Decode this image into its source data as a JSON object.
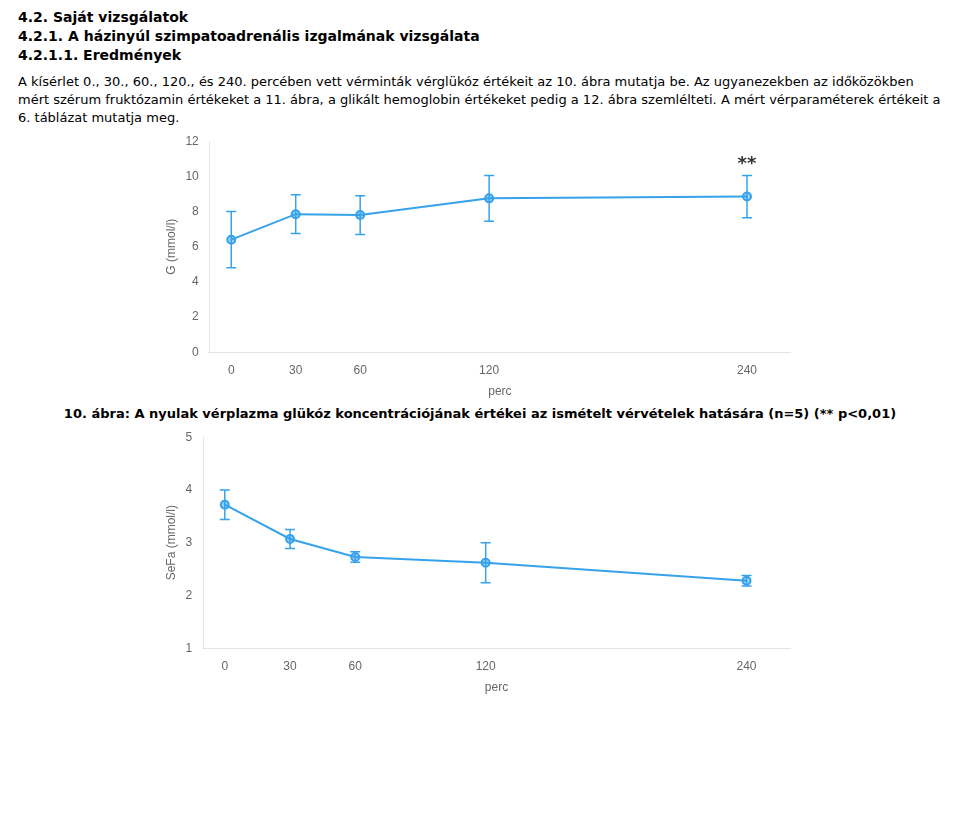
{
  "page_text": {
    "headings": [
      "4.2. Saját vizsgálatok",
      "4.2.1. A házinyúl szimpatoadrenális izgalmának vizsgálata",
      "4.2.1.1. Eredmények"
    ],
    "paragraph": "A kísérlet 0., 30., 60., 120., és 240. percében vett vérminták vérglükóz értékeit az 10. ábra mutatja be. Az ugyanezekben az időközökben mért szérum fruktózamin értékeket a 11. ábra, a glikált hemoglobin értékeket pedig a 12. ábra szemlélteti. A mért vérparaméterek értékeit a 6. táblázat mutatja meg."
  },
  "chart_data": [
    {
      "type": "line",
      "caption": "10. ábra: A nyulak vérplazma glükóz koncentrációjának értékei az ismételt vérvételek hatására (n=5) (** p<0,01)",
      "x": [
        0,
        30,
        60,
        120,
        240
      ],
      "values": [
        6.4,
        7.85,
        7.8,
        8.75,
        8.85
      ],
      "yerr": [
        1.6,
        1.1,
        1.1,
        1.3,
        1.2
      ],
      "ylabel": "G (mmol/l)",
      "xlabel": "perc",
      "xlim": [
        -10,
        260
      ],
      "xticks": [
        0,
        30,
        60,
        120,
        240
      ],
      "ylim": [
        0,
        12
      ],
      "yticks": [
        0,
        2,
        4,
        6,
        8,
        10,
        12
      ],
      "annotations": [
        {
          "text": "**",
          "x": 240,
          "y": 10.2
        }
      ],
      "marker": "circle",
      "line_style": "solid",
      "grid": false,
      "legend": false
    },
    {
      "type": "line",
      "x": [
        0,
        30,
        60,
        120,
        240
      ],
      "values": [
        3.72,
        3.07,
        2.73,
        2.62,
        2.28
      ],
      "yerr": [
        0.28,
        0.18,
        0.1,
        0.38,
        0.1
      ],
      "ylabel": "SeFa (mmol/l)",
      "xlabel": "perc",
      "xlim": [
        -10,
        260
      ],
      "xticks": [
        0,
        30,
        60,
        120,
        240
      ],
      "ylim": [
        1,
        5
      ],
      "yticks": [
        1,
        2,
        3,
        4,
        5
      ],
      "marker": "circle",
      "line_style": "solid",
      "grid": false,
      "legend": false
    }
  ]
}
